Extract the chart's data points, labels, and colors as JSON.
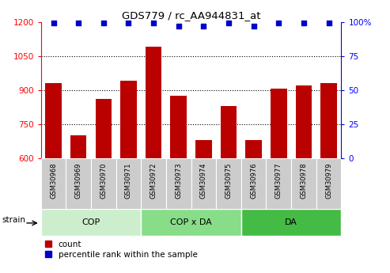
{
  "title": "GDS779 / rc_AA944831_at",
  "samples": [
    "GSM30968",
    "GSM30969",
    "GSM30970",
    "GSM30971",
    "GSM30972",
    "GSM30973",
    "GSM30974",
    "GSM30975",
    "GSM30976",
    "GSM30977",
    "GSM30978",
    "GSM30979"
  ],
  "counts": [
    930,
    700,
    860,
    940,
    1090,
    875,
    680,
    830,
    680,
    905,
    920,
    930
  ],
  "percentiles": [
    99,
    99,
    99,
    99,
    99,
    97,
    97,
    99,
    97,
    99,
    99,
    99
  ],
  "bar_color": "#bb0000",
  "dot_color": "#0000cc",
  "ylim_left": [
    600,
    1200
  ],
  "ylim_right": [
    0,
    100
  ],
  "yticks_left": [
    600,
    750,
    900,
    1050,
    1200
  ],
  "yticks_right": [
    0,
    25,
    50,
    75,
    100
  ],
  "ytick_labels_right": [
    "0",
    "25",
    "50",
    "75",
    "100%"
  ],
  "groups": [
    {
      "label": "COP",
      "start": 0,
      "end": 4,
      "color": "#cceecc"
    },
    {
      "label": "COP x DA",
      "start": 4,
      "end": 8,
      "color": "#88dd88"
    },
    {
      "label": "DA",
      "start": 8,
      "end": 12,
      "color": "#44bb44"
    }
  ],
  "strain_label": "strain",
  "legend_count": "count",
  "legend_percentile": "percentile rank within the sample",
  "bg_color": "#ffffff",
  "sample_box_color": "#cccccc",
  "grid_color": "#000000"
}
